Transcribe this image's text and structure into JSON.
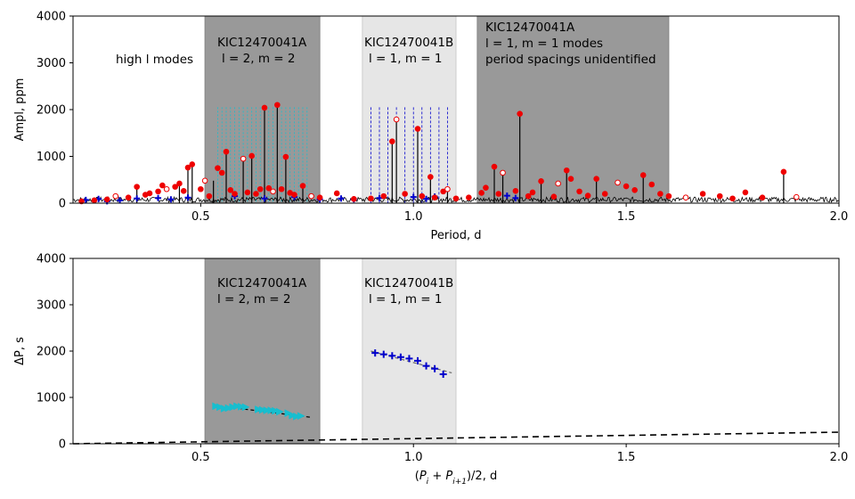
{
  "chart_data": [
    {
      "type": "line",
      "panel": "top",
      "xlabel": "Period, d",
      "ylabel": "Ampl, ppm",
      "xlim": [
        0.2,
        2.0
      ],
      "ylim": [
        0,
        4000
      ],
      "xticks": [
        "0.5",
        "1.0",
        "1.5",
        "2.0"
      ],
      "yticks": [
        "0",
        "1000",
        "2000",
        "3000",
        "4000"
      ],
      "regions": [
        {
          "x": [
            0.51,
            0.78
          ],
          "shade": "dark"
        },
        {
          "x": [
            0.88,
            1.1
          ],
          "shade": "light"
        },
        {
          "x": [
            1.15,
            1.6
          ],
          "shade": "dark"
        }
      ],
      "annotations": [
        {
          "lines": [
            "high l modes"
          ]
        },
        {
          "lines": [
            "KIC12470041A",
            "l = 2, m = 2"
          ]
        },
        {
          "lines": [
            "KIC12470041B",
            "l = 1, m = 1"
          ]
        },
        {
          "lines": [
            "KIC12470041A",
            "l = 1, m = 1 modes",
            "period spacings unidentified"
          ]
        }
      ],
      "vlines_cyan": [
        0.54,
        0.55,
        0.56,
        0.57,
        0.58,
        0.59,
        0.6,
        0.61,
        0.62,
        0.63,
        0.64,
        0.65,
        0.66,
        0.67,
        0.68,
        0.69,
        0.7,
        0.71,
        0.72,
        0.73,
        0.74,
        0.75
      ],
      "vlines_blue": [
        0.9,
        0.92,
        0.94,
        0.96,
        0.98,
        1.0,
        1.02,
        1.04,
        1.06,
        1.08
      ],
      "peaks": [
        [
          0.35,
          350
        ],
        [
          0.45,
          420
        ],
        [
          0.47,
          760
        ],
        [
          0.48,
          830
        ],
        [
          0.53,
          480
        ],
        [
          0.56,
          1100
        ],
        [
          0.6,
          950
        ],
        [
          0.62,
          1010
        ],
        [
          0.65,
          2040
        ],
        [
          0.68,
          2100
        ],
        [
          0.7,
          990
        ],
        [
          0.74,
          370
        ],
        [
          0.95,
          1320
        ],
        [
          0.96,
          1790
        ],
        [
          1.01,
          1590
        ],
        [
          1.04,
          560
        ],
        [
          1.08,
          300
        ],
        [
          1.19,
          780
        ],
        [
          1.21,
          650
        ],
        [
          1.25,
          1910
        ],
        [
          1.3,
          470
        ],
        [
          1.36,
          700
        ],
        [
          1.43,
          520
        ],
        [
          1.54,
          600
        ],
        [
          1.87,
          670
        ]
      ],
      "red_points": [
        [
          0.22,
          40
        ],
        [
          0.25,
          60
        ],
        [
          0.28,
          80
        ],
        [
          0.3,
          150
        ],
        [
          0.33,
          120
        ],
        [
          0.35,
          350
        ],
        [
          0.37,
          180
        ],
        [
          0.38,
          210
        ],
        [
          0.4,
          250
        ],
        [
          0.41,
          380
        ],
        [
          0.42,
          300
        ],
        [
          0.44,
          350
        ],
        [
          0.45,
          420
        ],
        [
          0.46,
          260
        ],
        [
          0.47,
          760
        ],
        [
          0.48,
          830
        ],
        [
          0.5,
          300
        ],
        [
          0.51,
          480
        ],
        [
          0.52,
          150
        ],
        [
          0.54,
          750
        ],
        [
          0.55,
          650
        ],
        [
          0.56,
          1100
        ],
        [
          0.57,
          280
        ],
        [
          0.58,
          200
        ],
        [
          0.6,
          950
        ],
        [
          0.61,
          230
        ],
        [
          0.62,
          1010
        ],
        [
          0.63,
          200
        ],
        [
          0.64,
          300
        ],
        [
          0.65,
          2040
        ],
        [
          0.66,
          320
        ],
        [
          0.67,
          250
        ],
        [
          0.68,
          2100
        ],
        [
          0.69,
          300
        ],
        [
          0.7,
          990
        ],
        [
          0.71,
          220
        ],
        [
          0.72,
          180
        ],
        [
          0.74,
          370
        ],
        [
          0.76,
          150
        ],
        [
          0.78,
          120
        ],
        [
          0.82,
          210
        ],
        [
          0.86,
          90
        ],
        [
          0.9,
          100
        ],
        [
          0.93,
          150
        ],
        [
          0.95,
          1320
        ],
        [
          0.96,
          1790
        ],
        [
          0.98,
          200
        ],
        [
          1.01,
          1590
        ],
        [
          1.02,
          150
        ],
        [
          1.04,
          560
        ],
        [
          1.05,
          120
        ],
        [
          1.07,
          250
        ],
        [
          1.08,
          300
        ],
        [
          1.1,
          100
        ],
        [
          1.13,
          120
        ],
        [
          1.16,
          220
        ],
        [
          1.17,
          330
        ],
        [
          1.19,
          780
        ],
        [
          1.2,
          200
        ],
        [
          1.21,
          650
        ],
        [
          1.24,
          260
        ],
        [
          1.25,
          1910
        ],
        [
          1.27,
          150
        ],
        [
          1.28,
          230
        ],
        [
          1.3,
          470
        ],
        [
          1.33,
          140
        ],
        [
          1.34,
          420
        ],
        [
          1.36,
          700
        ],
        [
          1.37,
          520
        ],
        [
          1.39,
          250
        ],
        [
          1.41,
          160
        ],
        [
          1.43,
          520
        ],
        [
          1.45,
          200
        ],
        [
          1.48,
          440
        ],
        [
          1.5,
          360
        ],
        [
          1.52,
          280
        ],
        [
          1.54,
          600
        ],
        [
          1.56,
          400
        ],
        [
          1.58,
          200
        ],
        [
          1.6,
          150
        ],
        [
          1.64,
          120
        ],
        [
          1.68,
          200
        ],
        [
          1.72,
          150
        ],
        [
          1.75,
          100
        ],
        [
          1.78,
          230
        ],
        [
          1.82,
          120
        ],
        [
          1.87,
          670
        ],
        [
          1.9,
          130
        ]
      ],
      "blue_points": [
        [
          0.23,
          70
        ],
        [
          0.26,
          90
        ],
        [
          0.28,
          40
        ],
        [
          0.31,
          60
        ],
        [
          0.35,
          100
        ],
        [
          0.4,
          110
        ],
        [
          0.43,
          80
        ],
        [
          0.47,
          120
        ],
        [
          0.58,
          150
        ],
        [
          0.65,
          100
        ],
        [
          0.72,
          130
        ],
        [
          0.78,
          80
        ],
        [
          0.83,
          100
        ],
        [
          0.86,
          80
        ],
        [
          0.92,
          110
        ],
        [
          1.0,
          130
        ],
        [
          1.03,
          90
        ],
        [
          1.05,
          140
        ],
        [
          1.22,
          160
        ],
        [
          1.24,
          110
        ]
      ]
    },
    {
      "type": "scatter",
      "panel": "bottom",
      "xlabel": "(P_i + P_{i+1})/2, d",
      "ylabel": "ΔP, s",
      "xlim": [
        0.2,
        2.0
      ],
      "ylim": [
        0,
        4000
      ],
      "xticks": [
        "0.5",
        "1.0",
        "1.5",
        "2.0"
      ],
      "yticks": [
        "0",
        "1000",
        "2000",
        "3000",
        "4000"
      ],
      "regions": [
        {
          "x": [
            0.51,
            0.78
          ],
          "shade": "dark"
        },
        {
          "x": [
            0.88,
            1.1
          ],
          "shade": "light"
        }
      ],
      "annotations": [
        {
          "lines": [
            "KIC12470041A",
            "l = 2, m = 2"
          ]
        },
        {
          "lines": [
            "KIC12470041B",
            "l = 1, m = 1"
          ]
        }
      ],
      "series": [
        {
          "marker": "triangle",
          "color": "#17becf",
          "x": [
            0.535,
            0.545,
            0.555,
            0.565,
            0.575,
            0.585,
            0.595,
            0.605,
            0.635,
            0.645,
            0.655,
            0.665,
            0.675,
            0.685,
            0.705,
            0.715,
            0.725,
            0.735
          ],
          "y": [
            810,
            790,
            760,
            770,
            790,
            810,
            800,
            790,
            740,
            730,
            720,
            720,
            710,
            690,
            660,
            610,
            590,
            600
          ]
        },
        {
          "marker": "plus",
          "color": "#0000cc",
          "x": [
            0.91,
            0.93,
            0.95,
            0.97,
            0.99,
            1.01,
            1.03,
            1.05,
            1.07
          ],
          "y": [
            1960,
            1930,
            1900,
            1870,
            1840,
            1790,
            1680,
            1620,
            1500
          ]
        }
      ],
      "fits": [
        {
          "x": [
            0.53,
            0.76
          ],
          "y": [
            830,
            570
          ]
        },
        {
          "x": [
            0.9,
            1.09
          ],
          "y": [
            2000,
            1530
          ]
        },
        {
          "x": [
            0.2,
            2.0
          ],
          "y": [
            0,
            250
          ]
        }
      ]
    }
  ]
}
